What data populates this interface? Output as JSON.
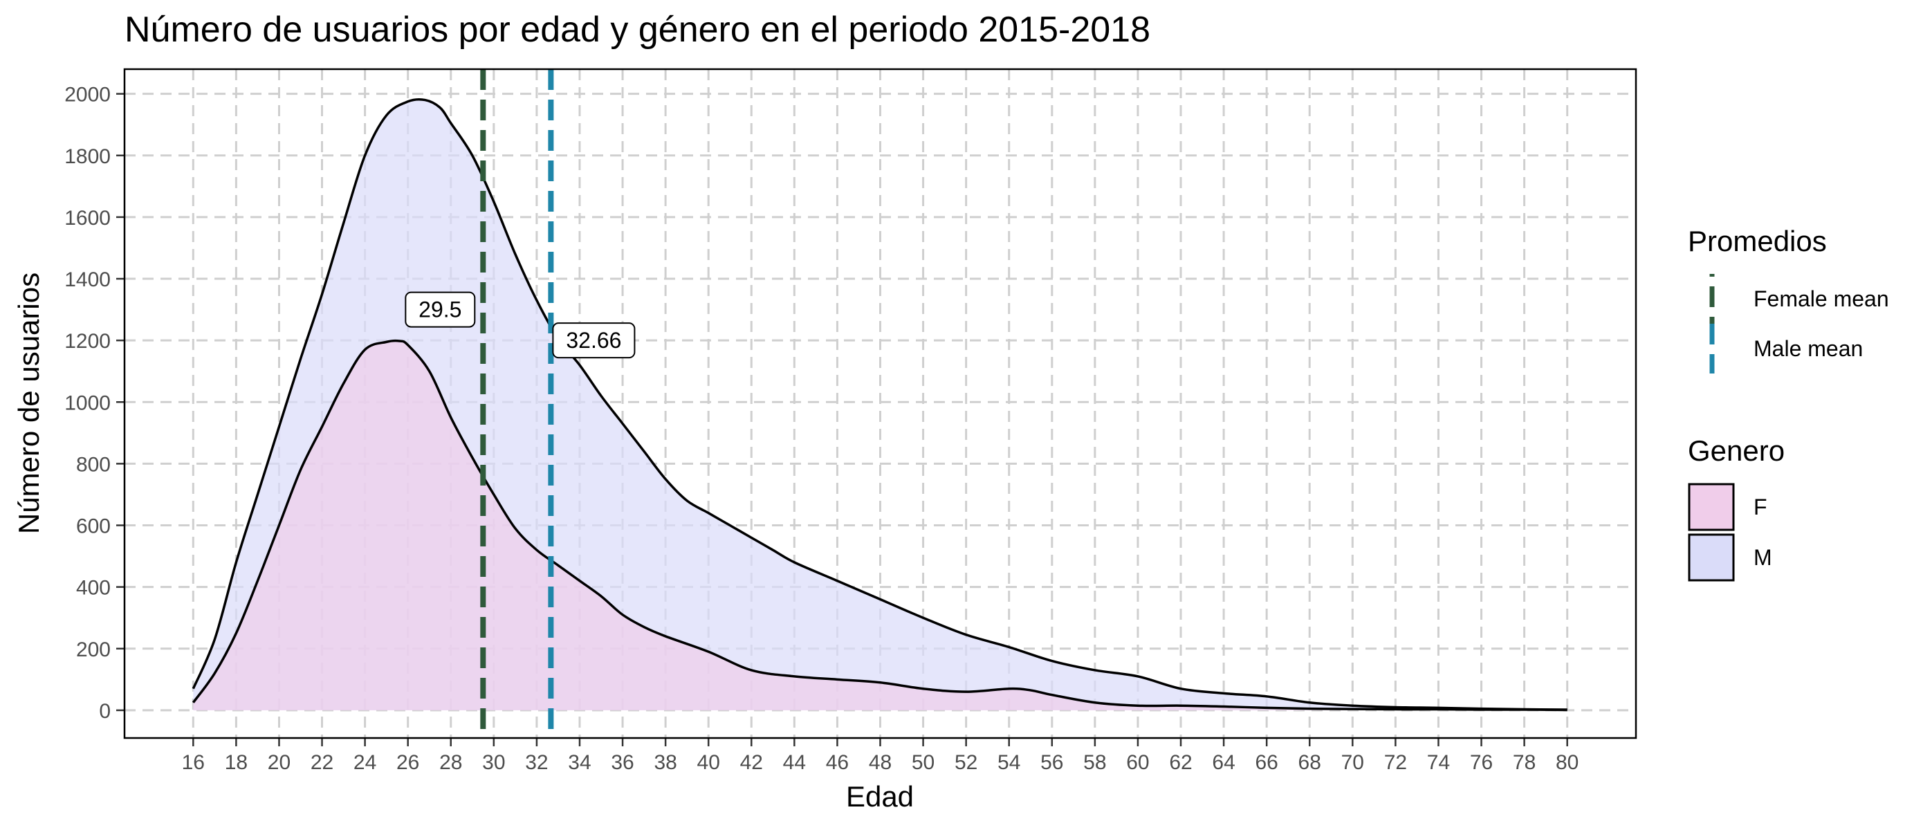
{
  "chart_data": {
    "type": "area",
    "title": "Número de usuarios por edad y género en el periodo 2015-2018",
    "xlabel": "Edad",
    "ylabel": "Número de usuarios",
    "xlim": [
      12.8,
      83.2
    ],
    "ylim": [
      -90,
      2080
    ],
    "xticks": [
      16,
      18,
      20,
      22,
      24,
      26,
      28,
      30,
      32,
      34,
      36,
      38,
      40,
      42,
      44,
      46,
      48,
      50,
      52,
      54,
      56,
      58,
      60,
      62,
      64,
      66,
      68,
      70,
      72,
      74,
      76,
      78,
      80
    ],
    "yticks": [
      0,
      200,
      400,
      600,
      800,
      1000,
      1200,
      1400,
      1600,
      1800,
      2000
    ],
    "grid": true,
    "series": [
      {
        "name": "M",
        "fill": "#dadcf9",
        "x": [
          16,
          17,
          18,
          19,
          20,
          21,
          22,
          23,
          24,
          25,
          26,
          26.8,
          27.5,
          28,
          29,
          30,
          31,
          32,
          33,
          34,
          35,
          36,
          37,
          38,
          39,
          40,
          41,
          42,
          43,
          44,
          46,
          48,
          50,
          52,
          54,
          56,
          58,
          60,
          62,
          64,
          66,
          68,
          70,
          72,
          74,
          76,
          78,
          80
        ],
        "y": [
          70,
          230,
          480,
          700,
          920,
          1140,
          1350,
          1580,
          1800,
          1930,
          1975,
          1980,
          1955,
          1905,
          1800,
          1650,
          1480,
          1330,
          1205,
          1120,
          1020,
          930,
          840,
          750,
          680,
          640,
          600,
          560,
          520,
          480,
          420,
          360,
          300,
          245,
          205,
          160,
          130,
          110,
          70,
          55,
          45,
          25,
          15,
          10,
          8,
          5,
          3,
          2
        ]
      },
      {
        "name": "F",
        "fill": "#f0cdea",
        "x": [
          16,
          17,
          18,
          19,
          20,
          21,
          22,
          23,
          24,
          25,
          25.6,
          26,
          27,
          28,
          29,
          30,
          31,
          32,
          33,
          34,
          35,
          36,
          37,
          38,
          40,
          42,
          44,
          46,
          48,
          50,
          52,
          54,
          55,
          56,
          58,
          60,
          62,
          64,
          66,
          68,
          70,
          72,
          74,
          76,
          78,
          80
        ],
        "y": [
          25,
          120,
          250,
          420,
          600,
          780,
          920,
          1060,
          1170,
          1195,
          1198,
          1185,
          1100,
          950,
          820,
          700,
          590,
          520,
          470,
          420,
          370,
          310,
          270,
          240,
          190,
          130,
          110,
          100,
          90,
          70,
          60,
          70,
          65,
          50,
          25,
          15,
          15,
          12,
          8,
          5,
          4,
          3,
          3,
          2,
          2,
          1
        ]
      }
    ],
    "mean_lines": [
      {
        "name": "Female mean",
        "x": 29.5,
        "label": "29.5",
        "color": "#2f5a3b",
        "label_y": 1300
      },
      {
        "name": "Male mean",
        "x": 32.66,
        "label": "32.66",
        "color": "#1f86a9",
        "label_y": 1200
      }
    ],
    "legends": [
      {
        "title": "Promedios",
        "items": [
          {
            "label": "Female mean",
            "color": "#2f5a3b",
            "kind": "line"
          },
          {
            "label": "Male mean",
            "color": "#1f86a9",
            "kind": "line"
          }
        ]
      },
      {
        "title": "Genero",
        "items": [
          {
            "label": "F",
            "color": "#f0cdea",
            "kind": "fill"
          },
          {
            "label": "M",
            "color": "#dadcf9",
            "kind": "fill"
          }
        ]
      }
    ],
    "legend_position": "right"
  }
}
